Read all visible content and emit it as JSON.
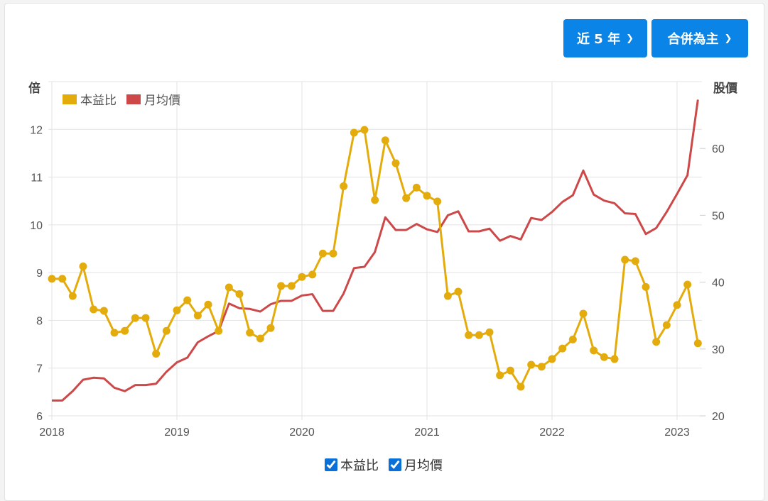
{
  "controls": {
    "period_label": "近 5 年",
    "basis_label": "合併為主"
  },
  "colors": {
    "pe": "#e3ac0c",
    "price": "#cd4848",
    "button": "#0a84e6"
  },
  "chart_data": {
    "type": "line",
    "left_axis_title": "倍",
    "right_axis_title": "股價",
    "left_ylim": [
      6,
      13
    ],
    "right_ylim": [
      20,
      70
    ],
    "left_ticks": [
      6,
      7,
      8,
      9,
      10,
      11,
      12
    ],
    "right_ticks": [
      20,
      30,
      40,
      50,
      60
    ],
    "x_ticks": [
      "2018",
      "2019",
      "2020",
      "2021",
      "2022",
      "2023"
    ],
    "start": "2018-01",
    "grid": true,
    "legend_position": "top-left",
    "series": [
      {
        "name": "本益比",
        "axis": "left",
        "markers": true,
        "values": [
          8.87,
          8.87,
          8.51,
          9.13,
          8.23,
          8.2,
          7.74,
          7.78,
          8.05,
          8.05,
          7.3,
          7.78,
          8.21,
          8.42,
          8.1,
          8.33,
          7.78,
          8.69,
          8.55,
          7.74,
          7.62,
          7.84,
          8.72,
          8.72,
          8.91,
          8.96,
          9.4,
          9.4,
          10.81,
          11.93,
          11.99,
          10.52,
          11.77,
          11.29,
          10.56,
          10.78,
          10.61,
          10.49,
          8.51,
          8.6,
          7.69,
          7.69,
          7.75,
          6.85,
          6.95,
          6.61,
          7.07,
          7.03,
          7.19,
          7.41,
          7.6,
          8.14,
          7.37,
          7.23,
          7.19,
          9.27,
          9.24,
          8.7,
          7.55,
          7.9,
          8.32,
          8.75,
          7.52
        ]
      },
      {
        "name": "月均價",
        "axis": "right",
        "markers": false,
        "values": [
          22.3,
          22.3,
          23.7,
          25.4,
          25.7,
          25.6,
          24.2,
          23.7,
          24.6,
          24.6,
          24.8,
          26.6,
          28,
          28.7,
          31,
          31.9,
          32.7,
          36.8,
          36.1,
          36,
          35.6,
          36.7,
          37.2,
          37.2,
          38,
          38.2,
          35.7,
          35.7,
          38.3,
          42.1,
          42.3,
          44.5,
          49.7,
          47.8,
          47.8,
          48.7,
          47.9,
          47.5,
          50,
          50.6,
          47.6,
          47.6,
          48,
          46.2,
          46.9,
          46.4,
          49.6,
          49.3,
          50.5,
          52,
          53,
          56.7,
          53.1,
          52.2,
          51.8,
          50.3,
          50.2,
          47.2,
          48.1,
          50.5,
          53.2,
          56,
          67.3
        ]
      }
    ]
  }
}
